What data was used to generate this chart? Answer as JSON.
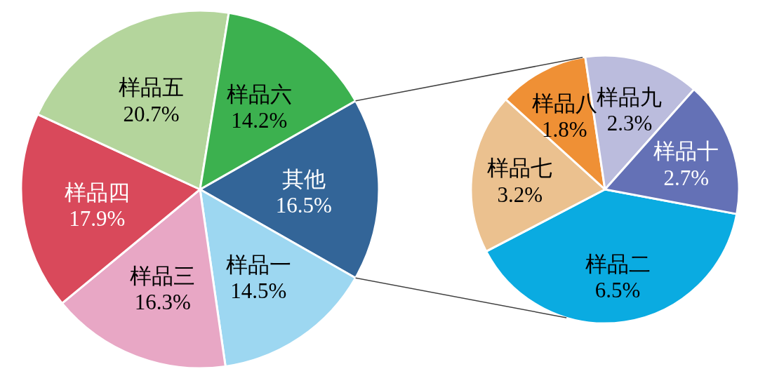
{
  "chart_data": [
    {
      "type": "pie",
      "categories": [
        "其他",
        "样品一",
        "样品三",
        "样品四",
        "样品五",
        "样品六"
      ],
      "values": [
        16.5,
        14.5,
        16.3,
        17.9,
        20.7,
        14.2
      ],
      "colors": [
        "#336598",
        "#9dd7f1",
        "#e8a7c5",
        "#d9495b",
        "#b4d59c",
        "#3cb14f"
      ],
      "value_labels": [
        "16.5%",
        "14.5%",
        "16.3%",
        "17.9%",
        "20.7%",
        "14.2%"
      ]
    },
    {
      "type": "pie",
      "categories": [
        "样品二",
        "样品七",
        "样品八",
        "样品九",
        "样品十"
      ],
      "values": [
        6.5,
        3.2,
        1.8,
        2.3,
        2.7
      ],
      "colors": [
        "#0aabe1",
        "#ebc18f",
        "#ef9035",
        "#bbbcdd",
        "#6471b6"
      ],
      "value_labels": [
        "6.5%",
        "3.2%",
        "1.8%",
        "2.3%",
        "2.7%"
      ]
    }
  ]
}
